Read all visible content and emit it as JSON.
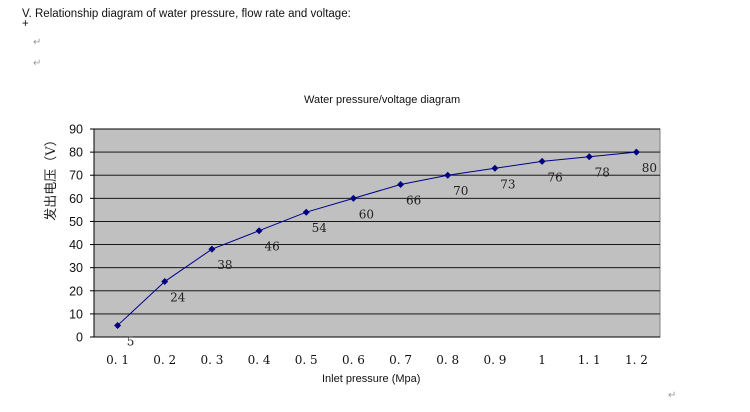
{
  "page": {
    "heading": "V. Relationship diagram of water pressure, flow rate and voltage: +",
    "return_marks": [
      "↵",
      "↵",
      "↵"
    ]
  },
  "chart_data": {
    "type": "line",
    "title": "Water pressure/voltage diagram",
    "xlabel": "Inlet pressure (Mpa)",
    "ylabel": "发出电压（V）",
    "categories": [
      "0. 1",
      "0. 2",
      "0. 3",
      "0. 4",
      "0. 5",
      "0. 6",
      "0. 7",
      "0. 8",
      "0. 9",
      "1",
      "1. 1",
      "1. 2"
    ],
    "x": [
      0.1,
      0.2,
      0.3,
      0.4,
      0.5,
      0.6,
      0.7,
      0.8,
      0.9,
      1.0,
      1.1,
      1.2
    ],
    "series": [
      {
        "values": [
          5,
          24,
          38,
          46,
          54,
          60,
          66,
          70,
          73,
          76,
          78,
          80
        ]
      }
    ],
    "yticks": [
      0,
      10,
      20,
      30,
      40,
      50,
      60,
      70,
      80,
      90
    ],
    "ylim": [
      0,
      90
    ],
    "grid": true,
    "legend": "none",
    "colors": {
      "plot_area": "#c0c0c0",
      "line": "#00008b",
      "marker": "#000080"
    }
  }
}
